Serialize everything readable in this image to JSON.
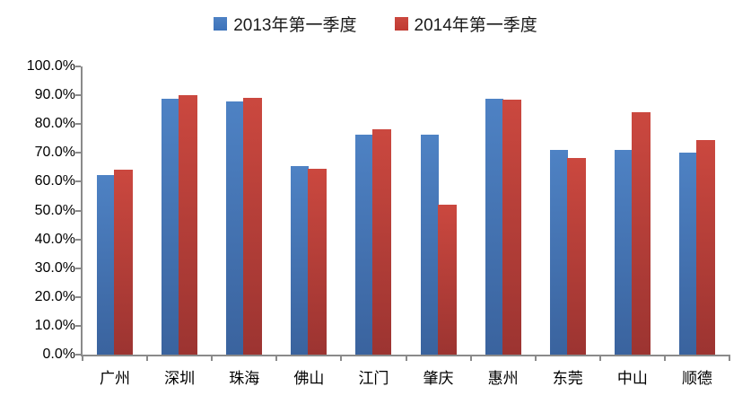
{
  "chart_data": {
    "type": "bar",
    "title": "",
    "categories": [
      "广州",
      "深圳",
      "珠海",
      "佛山",
      "江门",
      "肇庆",
      "惠州",
      "东莞",
      "中山",
      "顺德"
    ],
    "series": [
      {
        "name": "2013年第一季度",
        "legend_color": "#3D73BA",
        "color_top": "#4E82C4",
        "color_bottom": "#3A639E",
        "values": [
          62.4,
          88.7,
          87.7,
          65.4,
          76.4,
          76.4,
          88.9,
          71.0,
          71.0,
          70.1
        ]
      },
      {
        "name": "2014年第一季度",
        "legend_color": "#C03A32",
        "color_top": "#CB483F",
        "color_bottom": "#9C3431",
        "values": [
          64.3,
          90.1,
          89.0,
          64.6,
          78.2,
          52.1,
          88.6,
          68.2,
          84.0,
          74.4
        ]
      }
    ],
    "xlabel": "",
    "ylabel": "",
    "ylim": [
      0,
      100
    ],
    "ytick_step": 10,
    "ytick_values": [
      0,
      10,
      20,
      30,
      40,
      50,
      60,
      70,
      80,
      90,
      100
    ],
    "ytick_labels": [
      "0.0%",
      "10.0%",
      "20.0%",
      "30.0%",
      "40.0%",
      "50.0%",
      "60.0%",
      "70.0%",
      "80.0%",
      "90.0%",
      "100.0%"
    ],
    "legend_position": "top",
    "grid": false,
    "axis_color": "#8A8A8A",
    "text_color": "#000000",
    "background_color": "#FFFFFF"
  }
}
